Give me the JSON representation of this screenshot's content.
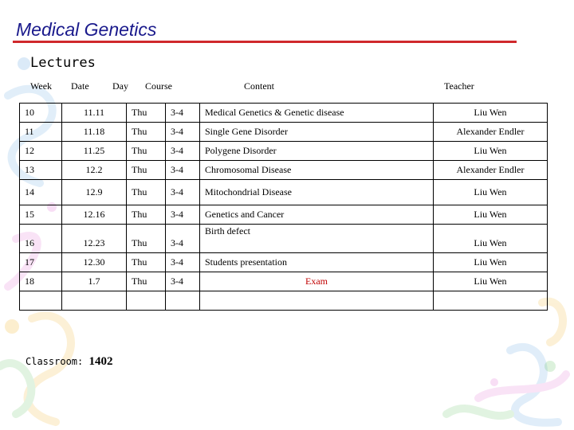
{
  "slide": {
    "title": "Medical Genetics",
    "subtitle": "Lectures",
    "headers": {
      "week": "Week",
      "date": "Date",
      "day": "Day",
      "course": "Course",
      "content": "Content",
      "teacher": "Teacher"
    },
    "rows": [
      {
        "week": "10",
        "date": "11.11",
        "day": "Thu",
        "course": "3-4",
        "content": "Medical Genetics & Genetic disease",
        "teacher": "Liu Wen"
      },
      {
        "week": "11",
        "date": "11.18",
        "day": "Thu",
        "course": "3-4",
        "content": "Single Gene Disorder",
        "teacher": "Alexander Endler"
      },
      {
        "week": "12",
        "date": "11.25",
        "day": "Thu",
        "course": "3-4",
        "content": "Polygene Disorder",
        "teacher": "Liu Wen"
      },
      {
        "week": "13",
        "date": "12.2",
        "day": "Thu",
        "course": "3-4",
        "content": "Chromosomal Disease",
        "teacher": "Alexander Endler"
      },
      {
        "week": "14",
        "date": "12.9",
        "day": "Thu",
        "course": "3-4",
        "content": "Mitochondrial Disease",
        "teacher": "Liu Wen"
      },
      {
        "week": "15",
        "date": "12.16",
        "day": "Thu",
        "course": "3-4",
        "content": "Genetics and Cancer",
        "content_extra": "Birth defect",
        "teacher": "Liu Wen"
      },
      {
        "week": "16",
        "date": "12.23",
        "day": "Thu",
        "course": "3-4",
        "content": "",
        "teacher": "Liu Wen"
      },
      {
        "week": "17",
        "date": "12.30",
        "day": "Thu",
        "course": "3-4",
        "content": "Students presentation",
        "teacher": "Liu Wen"
      },
      {
        "week": "18",
        "date": "1.7",
        "day": "Thu",
        "course": "3-4",
        "content": "Exam",
        "teacher": "Liu Wen"
      }
    ],
    "classroom_label": "Classroom:",
    "classroom_number": "1402"
  }
}
